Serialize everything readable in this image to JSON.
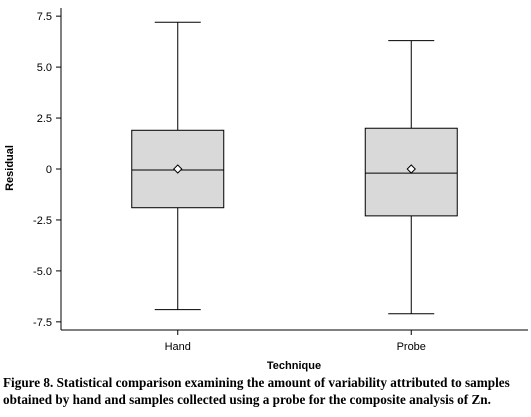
{
  "chart_data": {
    "type": "box",
    "xlabel": "Technique",
    "ylabel": "Residual",
    "categories": [
      "Hand",
      "Probe"
    ],
    "boxes": [
      {
        "category": "Hand",
        "whisker_low": -6.9,
        "q1": -1.9,
        "median": -0.05,
        "q3": 1.9,
        "whisker_high": 7.2,
        "mean": 0
      },
      {
        "category": "Probe",
        "whisker_low": -7.1,
        "q1": -2.3,
        "median": -0.2,
        "q3": 2.0,
        "whisker_high": 6.3,
        "mean": 0
      }
    ],
    "yticks": [
      7.5,
      5.0,
      2.5,
      0,
      -2.5,
      -5.0,
      -7.5
    ],
    "ytick_labels": [
      "7.5",
      "5.0",
      "2.5",
      "0",
      "-2.5",
      "-5.0",
      "-7.5"
    ],
    "ylim": [
      -7.9,
      7.9
    ],
    "grid": false,
    "box_fill": "#d9d9d9",
    "line_color": "#000000"
  },
  "caption": "Figure 8. Statistical comparison examining the amount of variability attributed to samples obtained by hand and samples collected using a probe for the composite analysis of Zn."
}
